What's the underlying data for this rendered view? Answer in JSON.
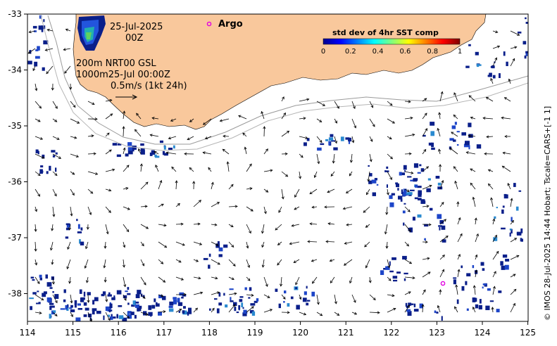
{
  "date_label": "25-Jul-2025",
  "time_label": "00Z",
  "argo_label": "Argo",
  "isobath_line1": "200m  NRT00 GSL",
  "isobath_line2": "1000m25-Jul 00:00Z",
  "scale_label": "0.5m/s (1kt 24h)",
  "colorbar": {
    "title": "std dev of 4hr SST comp",
    "ticks": [
      "0",
      "0.2",
      "0.4",
      "0.6",
      "0.8",
      "1"
    ]
  },
  "x_ticks": [
    "114",
    "115",
    "116",
    "117",
    "118",
    "119",
    "120",
    "121",
    "122",
    "123",
    "124",
    "125"
  ],
  "y_ticks": [
    "-33",
    "-34",
    "-35",
    "-36",
    "-37",
    "-38"
  ],
  "credit": "© IMOS 28-Jul-2025 14:44 Hobart; Tscale=CARS+[-1 1]",
  "colors": {
    "land": "#f9c89c",
    "sst_dark": "#0a1f8a",
    "argo": "#e000e0"
  }
}
